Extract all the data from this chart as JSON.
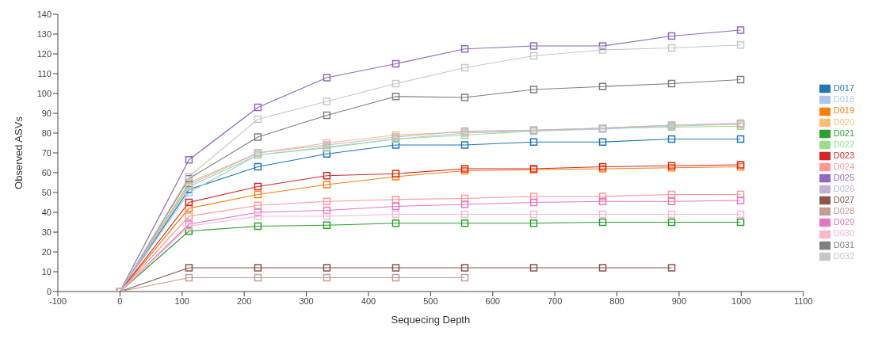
{
  "chart_data": {
    "type": "line",
    "xlabel": "Sequecing Depth",
    "ylabel": "Observed ASVs",
    "x": [
      0,
      111,
      222,
      333,
      444,
      555,
      666,
      777,
      888,
      999
    ],
    "xlim": [
      -100,
      1100
    ],
    "xticks": [
      -100,
      0,
      100,
      200,
      300,
      400,
      500,
      600,
      700,
      800,
      900,
      1000,
      1100
    ],
    "ylim": [
      0,
      140
    ],
    "yticks": [
      0,
      10,
      20,
      30,
      40,
      50,
      60,
      70,
      80,
      90,
      100,
      110,
      120,
      130,
      140
    ],
    "grid": false,
    "legend": "right",
    "marker": "square",
    "line_style": "solid",
    "series": [
      {
        "name": "D017",
        "color": "#1f77b4",
        "values": [
          0,
          51.5,
          63,
          69.5,
          74,
          74,
          75.5,
          75.5,
          77,
          77
        ]
      },
      {
        "name": "D018",
        "color": "#aec7e8",
        "values": [
          0,
          50,
          69,
          73,
          77,
          80,
          81,
          82,
          83.5,
          84.5
        ]
      },
      {
        "name": "D019",
        "color": "#ff7f0e",
        "values": [
          0,
          42,
          49,
          54,
          58,
          61,
          61.5,
          62,
          62.5,
          63
        ]
      },
      {
        "name": "D020",
        "color": "#ffbb78",
        "values": [
          0,
          55,
          70,
          75,
          79,
          80.5,
          81.5,
          82.5,
          84,
          84.5
        ]
      },
      {
        "name": "D021",
        "color": "#2ca02c",
        "values": [
          0,
          30.5,
          33,
          33.5,
          34.5,
          34.5,
          34.5,
          35,
          35,
          35
        ]
      },
      {
        "name": "D022",
        "color": "#98df8a",
        "values": [
          0,
          53,
          69,
          72.5,
          77,
          79,
          81,
          82.5,
          83,
          83.5
        ]
      },
      {
        "name": "D023",
        "color": "#d62728",
        "values": [
          0,
          45,
          53,
          58.5,
          59.5,
          62,
          62,
          63,
          63.5,
          64
        ]
      },
      {
        "name": "D024",
        "color": "#ff9896",
        "values": [
          0,
          38,
          43.5,
          45.5,
          46.5,
          47,
          48,
          48,
          49,
          49
        ]
      },
      {
        "name": "D025",
        "color": "#9467bd",
        "values": [
          0,
          66.5,
          93,
          108,
          115,
          122.5,
          124,
          124,
          129,
          132
        ]
      },
      {
        "name": "D026",
        "color": "#c5b0d5",
        "values": [
          0,
          54,
          70,
          74,
          78,
          81,
          81.5,
          82.5,
          84,
          85
        ]
      },
      {
        "name": "D027",
        "color": "#8c564b",
        "values": [
          0,
          12,
          12,
          12,
          12,
          12,
          12,
          12,
          12,
          null
        ]
      },
      {
        "name": "D028",
        "color": "#c49c94",
        "values": [
          0,
          7,
          7,
          7,
          7,
          7,
          null,
          null,
          null,
          null
        ]
      },
      {
        "name": "D029",
        "color": "#e377c2",
        "values": [
          0,
          34,
          40,
          41,
          43,
          44,
          45,
          45.5,
          45.5,
          46
        ]
      },
      {
        "name": "D030",
        "color": "#f7b6d2",
        "values": [
          0,
          33,
          38,
          38,
          39,
          39,
          39,
          39,
          39,
          39
        ]
      },
      {
        "name": "D031",
        "color": "#7f7f7f",
        "values": [
          0,
          57,
          78,
          89,
          98.5,
          98,
          102,
          103.5,
          105,
          107
        ]
      },
      {
        "name": "D032",
        "color": "#c7c7c7",
        "values": [
          0,
          58,
          87,
          96,
          105,
          113,
          119,
          122,
          123,
          124.5
        ]
      }
    ]
  }
}
